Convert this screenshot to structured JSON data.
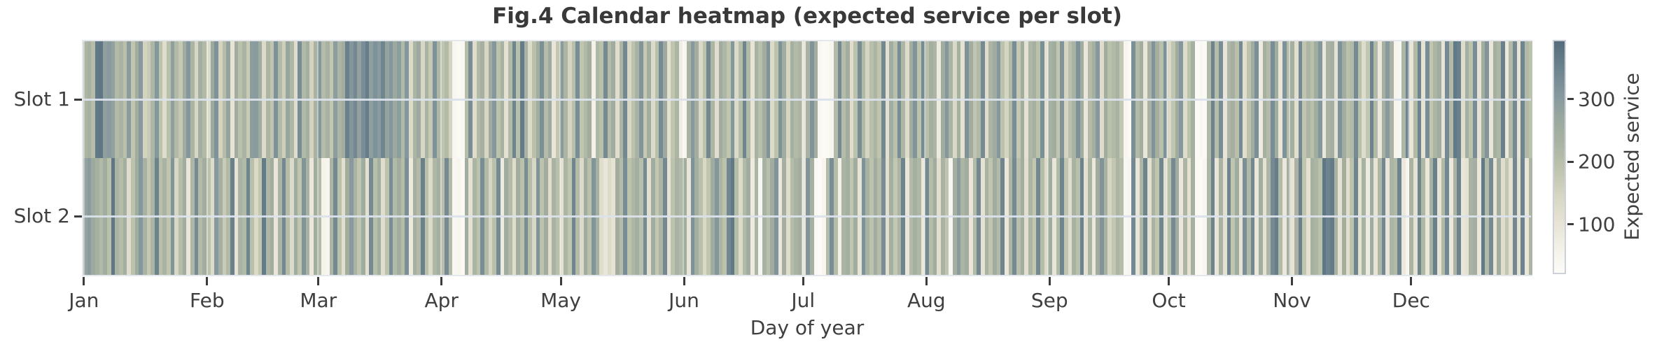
{
  "chart_data": {
    "type": "heatmap",
    "title": "Fig.4 Calendar heatmap (expected service per slot)",
    "xlabel": "Day of year",
    "rows": [
      "Slot 1",
      "Slot 2"
    ],
    "x_ticks": [
      "Jan",
      "Feb",
      "Mar",
      "Apr",
      "May",
      "Jun",
      "Jul",
      "Aug",
      "Sep",
      "Oct",
      "Nov",
      "Dec"
    ],
    "month_start_days": [
      0,
      31,
      59,
      90,
      120,
      151,
      181,
      212,
      243,
      273,
      304,
      334
    ],
    "n_days": 365,
    "grid": true,
    "colorbar": {
      "label": "Expected service",
      "ticks": [
        300,
        200,
        100
      ],
      "vmin": 20,
      "vmax": 395
    },
    "colormap_stops": [
      {
        "t": 0.0,
        "color": "#fcfbf8"
      },
      {
        "t": 0.1,
        "color": "#f4f2e9"
      },
      {
        "t": 0.21,
        "color": "#e8e4d6"
      },
      {
        "t": 0.33,
        "color": "#d7d6c3"
      },
      {
        "t": 0.45,
        "color": "#bdc3ad"
      },
      {
        "t": 0.57,
        "color": "#a8b2a2"
      },
      {
        "t": 0.67,
        "color": "#99a79e"
      },
      {
        "t": 0.76,
        "color": "#87999e"
      },
      {
        "t": 0.87,
        "color": "#6f858f"
      },
      {
        "t": 1.0,
        "color": "#546c7c"
      }
    ],
    "series": [
      {
        "name": "Slot 1",
        "values": [
          225,
          240,
          205,
          370,
          375,
          290,
          300,
          285,
          215,
          230,
          195,
          300,
          185,
          250,
          305,
          150,
          170,
          220,
          310,
          190,
          120,
          200,
          290,
          215,
          175,
          255,
          310,
          225,
          140,
          245,
          215,
          130,
          265,
          320,
          150,
          205,
          280,
          100,
          250,
          195,
          230,
          170,
          295,
          300,
          255,
          130,
          225,
          185,
          320,
          210,
          160,
          275,
          220,
          120,
          330,
          215,
          245,
          150,
          230,
          310,
          205,
          235,
          180,
          295,
          225,
          250,
          355,
          310,
          340,
          285,
          330,
          360,
          290,
          320,
          300,
          345,
          280,
          310,
          265,
          295,
          215,
          310,
          130,
          225,
          260,
          140,
          230,
          175,
          320,
          220,
          185,
          210,
          150,
          40,
          30,
          35,
          205,
          330,
          120,
          215,
          240,
          140,
          255,
          310,
          190,
          235,
          110,
          210,
          345,
          200,
          365,
          230,
          130,
          195,
          250,
          325,
          205,
          260,
          95,
          180,
          300,
          225,
          145,
          200,
          330,
          185,
          215,
          250,
          60,
          220,
          195,
          335,
          210,
          255,
          120,
          225,
          340,
          140,
          190,
          230,
          315,
          175,
          250,
          130,
          200,
          335,
          260,
          110,
          185,
          225,
          70,
          45,
          230,
          305,
          250,
          135,
          190,
          340,
          225,
          120,
          255,
          220,
          185,
          310,
          130,
          205,
          345,
          215,
          100,
          235,
          200,
          250,
          315,
          130,
          190,
          320,
          255,
          145,
          240,
          210,
          225,
          95,
          235,
          315,
          250,
          35,
          25,
          30,
          45,
          210,
          335,
          205,
          250,
          120,
          190,
          330,
          215,
          145,
          200,
          225,
          185,
          340,
          110,
          255,
          195,
          330,
          220,
          125,
          250,
          315,
          190,
          335,
          200,
          245,
          225,
          80,
          255,
          310,
          230,
          135,
          240,
          105,
          320,
          250,
          185,
          215,
          335,
          120,
          225,
          255,
          310,
          190,
          145,
          215,
          330,
          175,
          250,
          105,
          220,
          240,
          195,
          325,
          110,
          235,
          250,
          185,
          315,
          145,
          200,
          230,
          320,
          255,
          90,
          210,
          240,
          305,
          125,
          250,
          195,
          215,
          235,
          180,
          45,
          30,
          325,
          210,
          250,
          95,
          230,
          315,
          245,
          200,
          320,
          135,
          185,
          255,
          310,
          125,
          190,
          240,
          25,
          35,
          30,
          215,
          350,
          205,
          330,
          95,
          220,
          245,
          200,
          335,
          115,
          190,
          255,
          325,
          80,
          240,
          210,
          330,
          250,
          95,
          320,
          205,
          245,
          115,
          335,
          185,
          225,
          200,
          255,
          310,
          90,
          230,
          245,
          105,
          320,
          250,
          195,
          215,
          335,
          200,
          125,
          180,
          350,
          215,
          90,
          240,
          305,
          230,
          50,
          40,
          220,
          345,
          95,
          215,
          350,
          105,
          330,
          185,
          225,
          255,
          100,
          335,
          210,
          370,
          355,
          125,
          245,
          190,
          330,
          105,
          250,
          315,
          95,
          240,
          220,
          355,
          85,
          210,
          335,
          100,
          345,
          215,
          190
        ]
      },
      {
        "name": "Slot 2",
        "values": [
          280,
          300,
          265,
          240,
          215,
          250,
          195,
          375,
          230,
          205,
          245,
          120,
          190,
          255,
          310,
          235,
          175,
          225,
          350,
          200,
          230,
          185,
          315,
          140,
          205,
          255,
          95,
          220,
          335,
          210,
          250,
          190,
          125,
          305,
          240,
          170,
          215,
          355,
          100,
          230,
          215,
          345,
          200,
          135,
          180,
          365,
          220,
          250,
          95,
          225,
          340,
          205,
          130,
          255,
          185,
          315,
          235,
          90,
          250,
          210,
          55,
          45,
          225,
          340,
          195,
          115,
          250,
          305,
          230,
          185,
          255,
          110,
          335,
          200,
          245,
          120,
          190,
          330,
          215,
          250,
          205,
          325,
          80,
          240,
          210,
          355,
          195,
          130,
          220,
          245,
          200,
          335,
          215,
          35,
          45,
          30,
          250,
          105,
          225,
          190,
          330,
          215,
          145,
          200,
          335,
          80,
          255,
          210,
          125,
          250,
          195,
          330,
          205,
          140,
          315,
          190,
          250,
          120,
          235,
          200,
          110,
          225,
          185,
          345,
          210,
          130,
          255,
          195,
          315,
          240,
          120,
          95,
          130,
          105,
          250,
          205,
          330,
          190,
          220,
          245,
          200,
          335,
          115,
          255,
          180,
          225,
          340,
          105,
          190,
          230,
          215,
          250,
          95,
          320,
          245,
          200,
          135,
          185,
          255,
          310,
          225,
          190,
          340,
          370,
          205,
          130,
          215,
          250,
          80,
          225,
          40,
          235,
          200,
          255,
          315,
          90,
          245,
          120,
          205,
          230,
          250,
          95,
          315,
          240,
          35,
          25,
          45,
          210,
          330,
          205,
          60,
          225,
          245,
          185,
          255,
          100,
          320,
          235,
          190,
          250,
          205,
          330,
          115,
          245,
          180,
          225,
          350,
          95,
          210,
          240,
          220,
          90,
          335,
          205,
          255,
          115,
          230,
          185,
          40,
          245,
          300,
          225,
          250,
          95,
          215,
          340,
          105,
          230,
          185,
          255,
          210,
          345,
          90,
          220,
          335,
          200,
          250,
          115,
          225,
          180,
          340,
          205,
          130,
          255,
          95,
          215,
          345,
          185,
          120,
          235,
          200,
          350,
          110,
          225,
          90,
          255,
          315,
          230,
          145,
          180,
          225,
          205,
          35,
          45,
          340,
          95,
          220,
          350,
          110,
          230,
          185,
          345,
          115,
          200,
          335,
          255,
          90,
          225,
          105,
          240,
          30,
          25,
          40,
          220,
          350,
          95,
          230,
          110,
          345,
          185,
          255,
          100,
          325,
          215,
          340,
          90,
          250,
          105,
          220,
          335,
          360,
          215,
          90,
          245,
          100,
          230,
          355,
          185,
          110,
          240,
          225,
          195,
          375,
          350,
          365,
          230,
          105,
          250,
          115,
          190,
          345,
          110,
          235,
          80,
          255,
          100,
          220,
          340,
          95,
          225,
          215,
          350,
          85,
          50,
          230,
          105,
          345,
          220,
          90,
          235,
          355,
          100,
          215,
          340,
          85,
          225,
          350,
          95,
          110,
          230,
          245,
          90,
          370,
          215,
          335,
          100,
          255,
          120,
          180,
          110,
          340,
          110,
          350,
          95,
          225
        ]
      }
    ]
  }
}
